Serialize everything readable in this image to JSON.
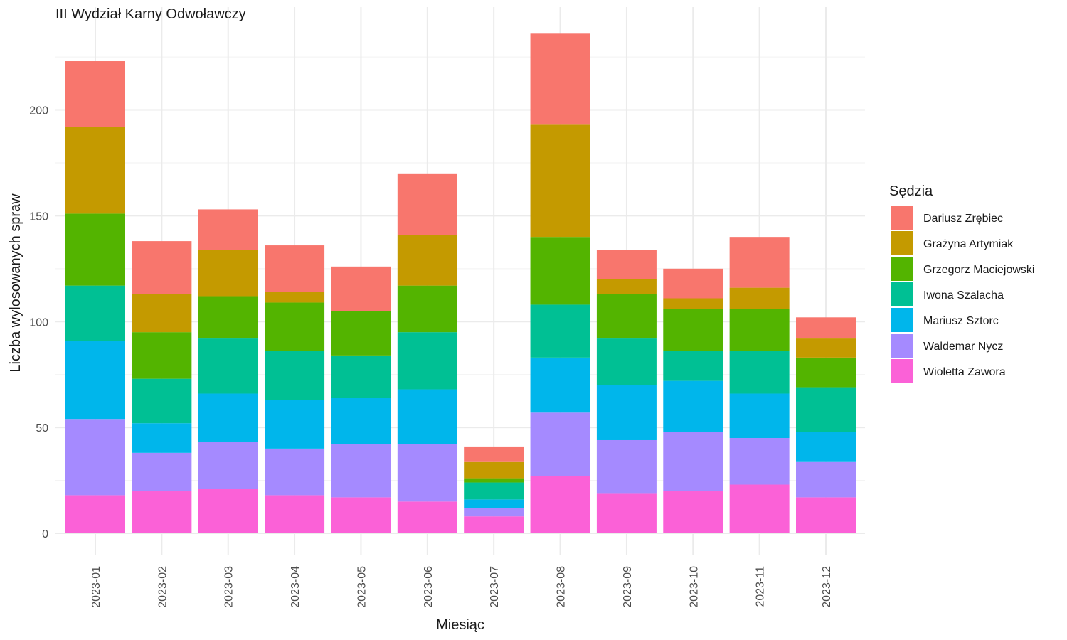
{
  "chart_data": {
    "type": "bar",
    "stacked": true,
    "title": "III Wydział Karny Odwoławczy",
    "xlabel": "Miesiąc",
    "ylabel": "Liczba wylosowanych spraw",
    "ylim": [
      0,
      240
    ],
    "yticks": [
      0,
      50,
      100,
      150,
      200
    ],
    "grid": true,
    "legend_title": "Sędzia",
    "legend_position": "right",
    "categories": [
      "2023-01",
      "2023-02",
      "2023-03",
      "2023-04",
      "2023-05",
      "2023-06",
      "2023-07",
      "2023-08",
      "2023-09",
      "2023-10",
      "2023-11",
      "2023-12"
    ],
    "series": [
      {
        "name": "Wioletta Zawora",
        "color": "#FB61D7",
        "values": [
          18,
          20,
          21,
          18,
          17,
          15,
          8,
          27,
          19,
          20,
          23,
          17
        ]
      },
      {
        "name": "Waldemar Nycz",
        "color": "#A58AFF",
        "values": [
          36,
          18,
          22,
          22,
          25,
          27,
          4,
          30,
          25,
          28,
          22,
          17
        ]
      },
      {
        "name": "Mariusz Sztorc",
        "color": "#00B6EB",
        "values": [
          37,
          14,
          23,
          23,
          22,
          26,
          4,
          26,
          26,
          24,
          21,
          14
        ]
      },
      {
        "name": "Iwona Szalacha",
        "color": "#00C094",
        "values": [
          26,
          21,
          26,
          23,
          20,
          27,
          8,
          25,
          22,
          14,
          20,
          21
        ]
      },
      {
        "name": "Grzegorz Maciejowski",
        "color": "#53B400",
        "values": [
          34,
          22,
          20,
          23,
          21,
          22,
          2,
          32,
          21,
          20,
          20,
          14
        ]
      },
      {
        "name": "Grażyna Artymiak",
        "color": "#C49A00",
        "values": [
          41,
          18,
          22,
          5,
          0,
          24,
          8,
          53,
          7,
          5,
          10,
          9
        ]
      },
      {
        "name": "Dariusz Zrębiec",
        "color": "#F8766D",
        "values": [
          31,
          25,
          19,
          22,
          21,
          29,
          7,
          43,
          14,
          14,
          24,
          10
        ]
      }
    ],
    "legend_order": [
      "Dariusz Zrębiec",
      "Grażyna Artymiak",
      "Grzegorz Maciejowski",
      "Iwona Szalacha",
      "Mariusz Sztorc",
      "Waldemar Nycz",
      "Wioletta Zawora"
    ]
  }
}
